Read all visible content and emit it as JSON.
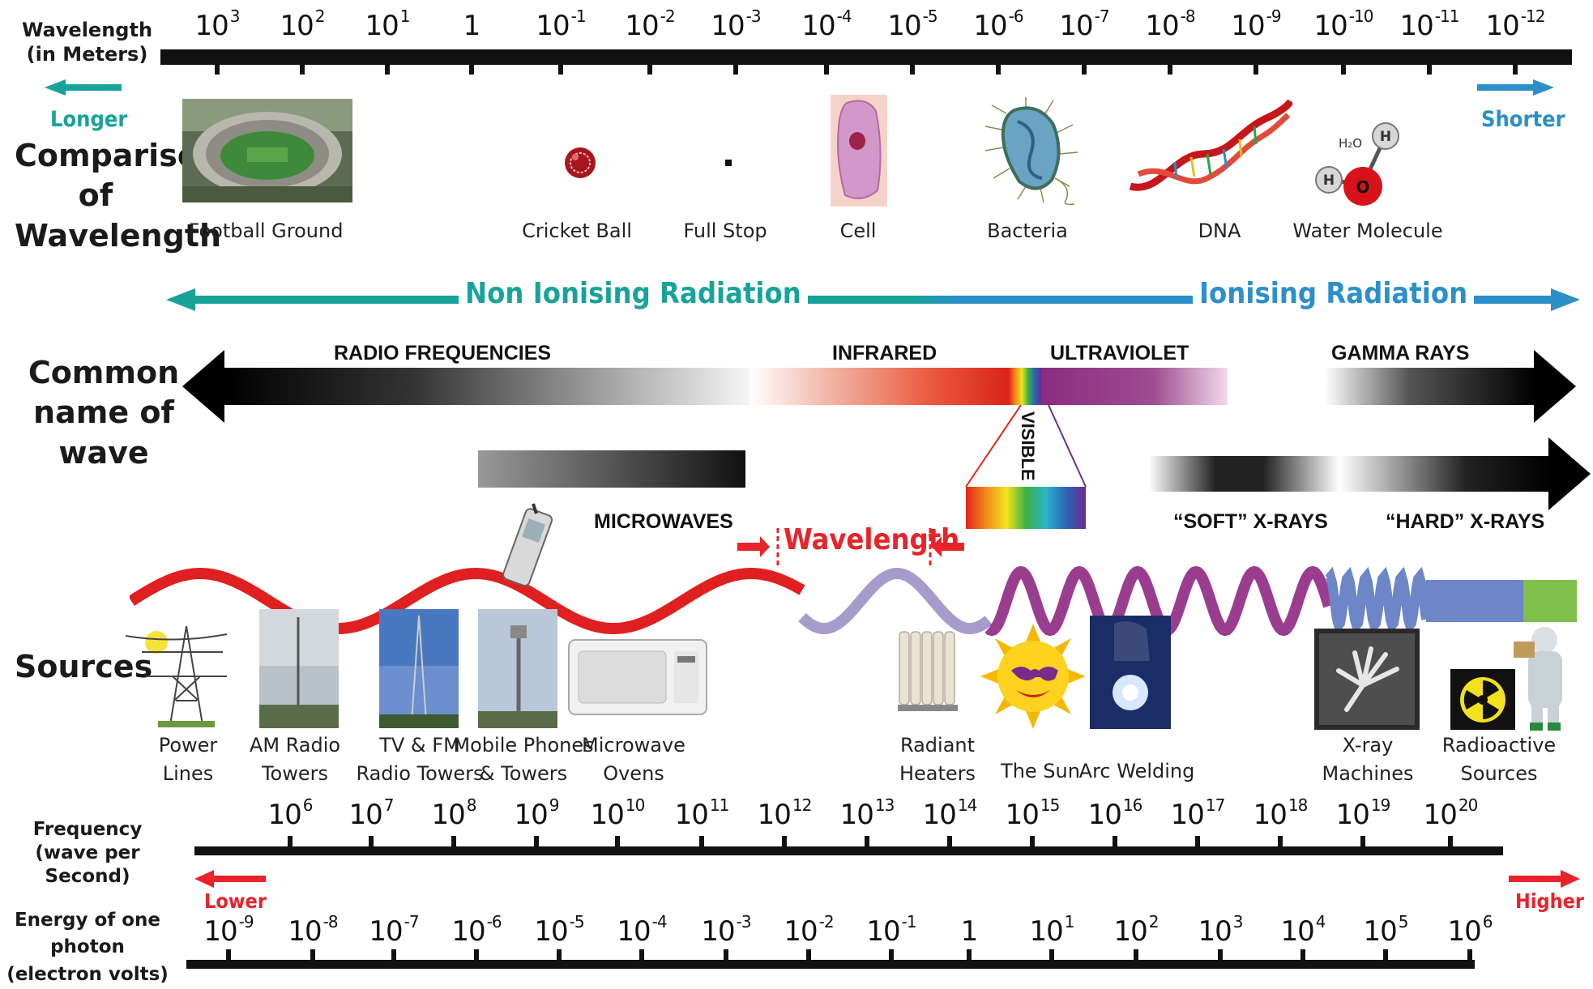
{
  "labels": {
    "wavelength_axis": "Wavelength",
    "wavelength_unit": "(in Meters)",
    "longer": "Longer",
    "shorter": "Shorter",
    "comparison_l1": "Comparison",
    "comparison_l2": "of",
    "comparison_l3": "Wavelength",
    "non_ionising": "Non Ionising Radiation",
    "ionising": "Ionising Radiation",
    "common_l1": "Common",
    "common_l2": "name of wave",
    "sources": "Sources",
    "frequency_l1": "Frequency",
    "frequency_l2": "(wave per Second)",
    "lower": "Lower",
    "higher": "Higher",
    "energy_l1": "Energy of one",
    "energy_l2": "photon",
    "energy_l3": "(electron volts)",
    "wavelength_marker": "Wavelength",
    "water_formula": "H₂O",
    "h_atom": "H",
    "o_atom": "O"
  },
  "wavelength_ticks": [
    {
      "base": "10",
      "exp": "3"
    },
    {
      "base": "10",
      "exp": "2"
    },
    {
      "base": "10",
      "exp": "1"
    },
    {
      "base": "1",
      "exp": ""
    },
    {
      "base": "10",
      "exp": "-1"
    },
    {
      "base": "10",
      "exp": "-2"
    },
    {
      "base": "10",
      "exp": "-3"
    },
    {
      "base": "10",
      "exp": "-4"
    },
    {
      "base": "10",
      "exp": "-5"
    },
    {
      "base": "10",
      "exp": "-6"
    },
    {
      "base": "10",
      "exp": "-7"
    },
    {
      "base": "10",
      "exp": "-8"
    },
    {
      "base": "10",
      "exp": "-9"
    },
    {
      "base": "10",
      "exp": "-10"
    },
    {
      "base": "10",
      "exp": "-11"
    },
    {
      "base": "10",
      "exp": "-12"
    }
  ],
  "comparisons": [
    "Football Ground",
    "Cricket Ball",
    "Full Stop",
    "Cell",
    "Bacteria",
    "DNA",
    "Water Molecule"
  ],
  "bands": {
    "radio": "RADIO FREQUENCIES",
    "infrared": "INFRARED",
    "ultraviolet": "ULTRAVIOLET",
    "gamma": "GAMMA RAYS",
    "microwaves": "MICROWAVES",
    "visible": "VISIBLE",
    "soft_xray": "“SOFT” X-RAYS",
    "hard_xray": "“HARD” X-RAYS"
  },
  "sources": [
    [
      "Power",
      "Lines"
    ],
    [
      "AM Radio",
      "Towers"
    ],
    [
      "TV & FM",
      "Radio Towers"
    ],
    [
      "Mobile Phones",
      "& Towers"
    ],
    [
      "Microwave",
      "Ovens"
    ],
    [
      "Radiant",
      "Heaters"
    ],
    [
      "The Sun",
      ""
    ],
    [
      "Arc Welding",
      ""
    ],
    [
      "X-ray",
      "Machines"
    ],
    [
      "Radioactive",
      "Sources"
    ]
  ],
  "frequency_ticks": [
    {
      "base": "10",
      "exp": "6"
    },
    {
      "base": "10",
      "exp": "7"
    },
    {
      "base": "10",
      "exp": "8"
    },
    {
      "base": "10",
      "exp": "9"
    },
    {
      "base": "10",
      "exp": "10"
    },
    {
      "base": "10",
      "exp": "11"
    },
    {
      "base": "10",
      "exp": "12"
    },
    {
      "base": "10",
      "exp": "13"
    },
    {
      "base": "10",
      "exp": "14"
    },
    {
      "base": "10",
      "exp": "15"
    },
    {
      "base": "10",
      "exp": "16"
    },
    {
      "base": "10",
      "exp": "17"
    },
    {
      "base": "10",
      "exp": "18"
    },
    {
      "base": "10",
      "exp": "19"
    },
    {
      "base": "10",
      "exp": "20"
    }
  ],
  "energy_ticks": [
    {
      "base": "10",
      "exp": "-9"
    },
    {
      "base": "10",
      "exp": "-8"
    },
    {
      "base": "10",
      "exp": "-7"
    },
    {
      "base": "10",
      "exp": "-6"
    },
    {
      "base": "10",
      "exp": "-5"
    },
    {
      "base": "10",
      "exp": "-4"
    },
    {
      "base": "10",
      "exp": "-3"
    },
    {
      "base": "10",
      "exp": "-2"
    },
    {
      "base": "10",
      "exp": "-1"
    },
    {
      "base": "1",
      "exp": ""
    },
    {
      "base": "10",
      "exp": "1"
    },
    {
      "base": "10",
      "exp": "2"
    },
    {
      "base": "10",
      "exp": "3"
    },
    {
      "base": "10",
      "exp": "4"
    },
    {
      "base": "10",
      "exp": "5"
    },
    {
      "base": "10",
      "exp": "6"
    }
  ],
  "colors": {
    "teal": "#17a39a",
    "blue": "#2b8fc9",
    "red": "#e8232a",
    "wave_red": "#e02020",
    "wave_lavender": "#a69ccc",
    "wave_purple": "#9b3d8f",
    "wave_blue": "#6c86c8",
    "wave_green": "#7fbf4a"
  }
}
